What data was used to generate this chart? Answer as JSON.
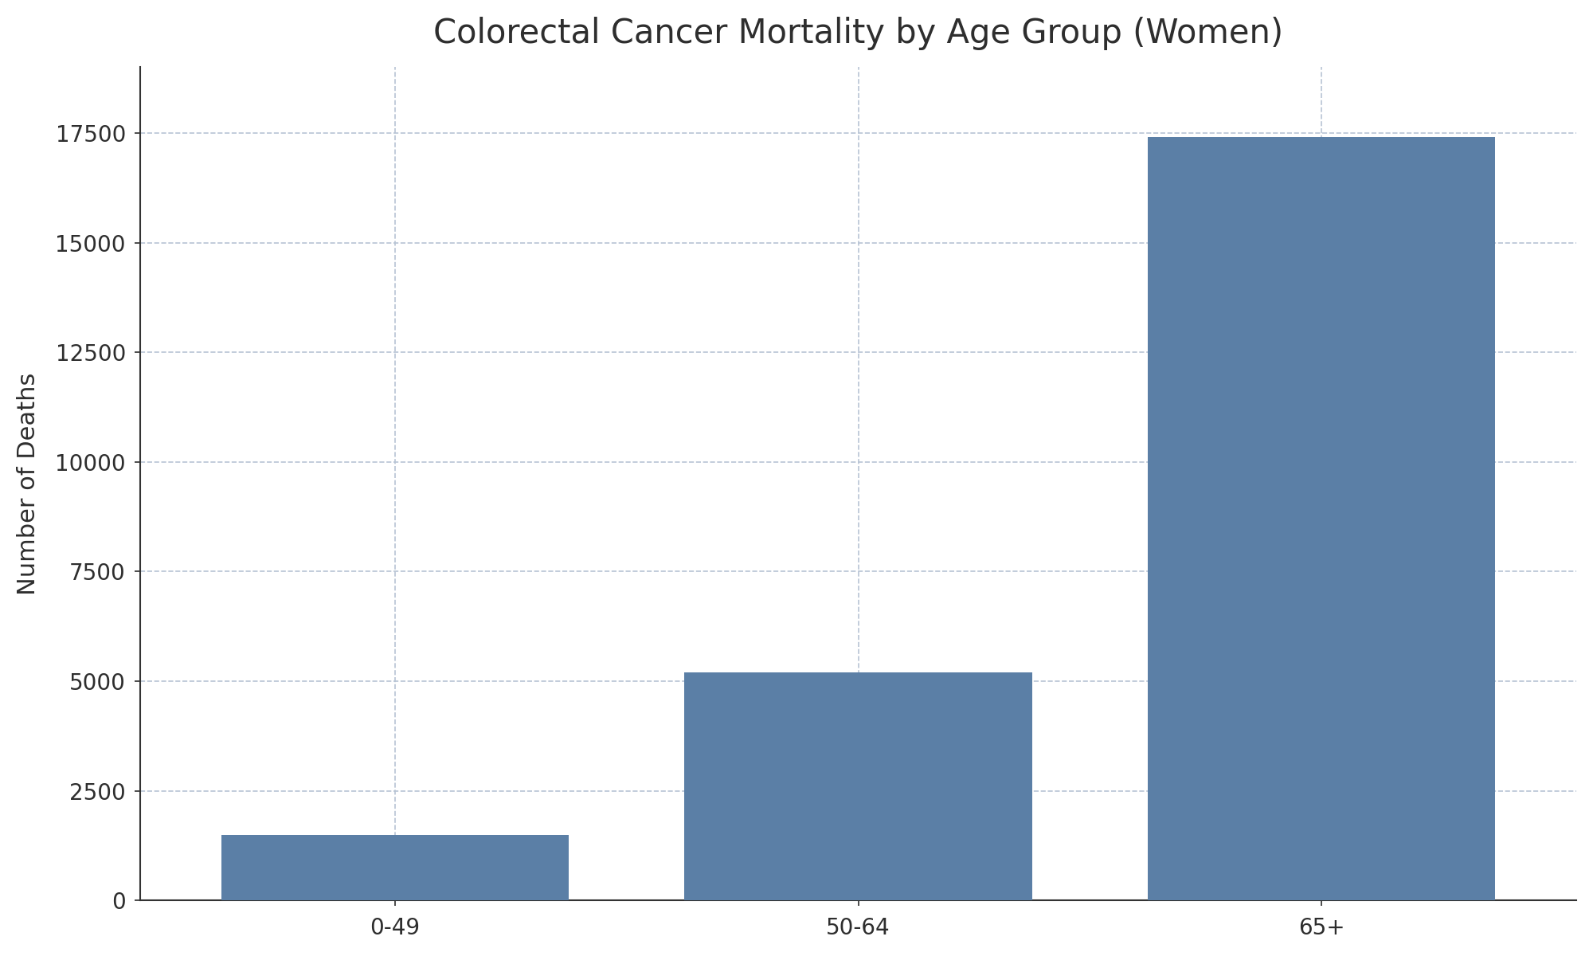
{
  "title": "Colorectal Cancer Mortality by Age Group (Women)",
  "categories": [
    "0-49",
    "50-64",
    "65+"
  ],
  "values": [
    1500,
    5200,
    17400
  ],
  "bar_color": "#5b7fa6",
  "ylabel": "Number of Deaths",
  "xlabel": "",
  "ylim": [
    0,
    19000
  ],
  "yticks": [
    0,
    2500,
    5000,
    7500,
    10000,
    12500,
    15000,
    17500
  ],
  "background_color": "#ffffff",
  "title_fontsize": 30,
  "axis_label_fontsize": 22,
  "tick_fontsize": 20,
  "bar_width": 0.75,
  "grid_color": "#b8c4d4",
  "spine_color": "#333333"
}
